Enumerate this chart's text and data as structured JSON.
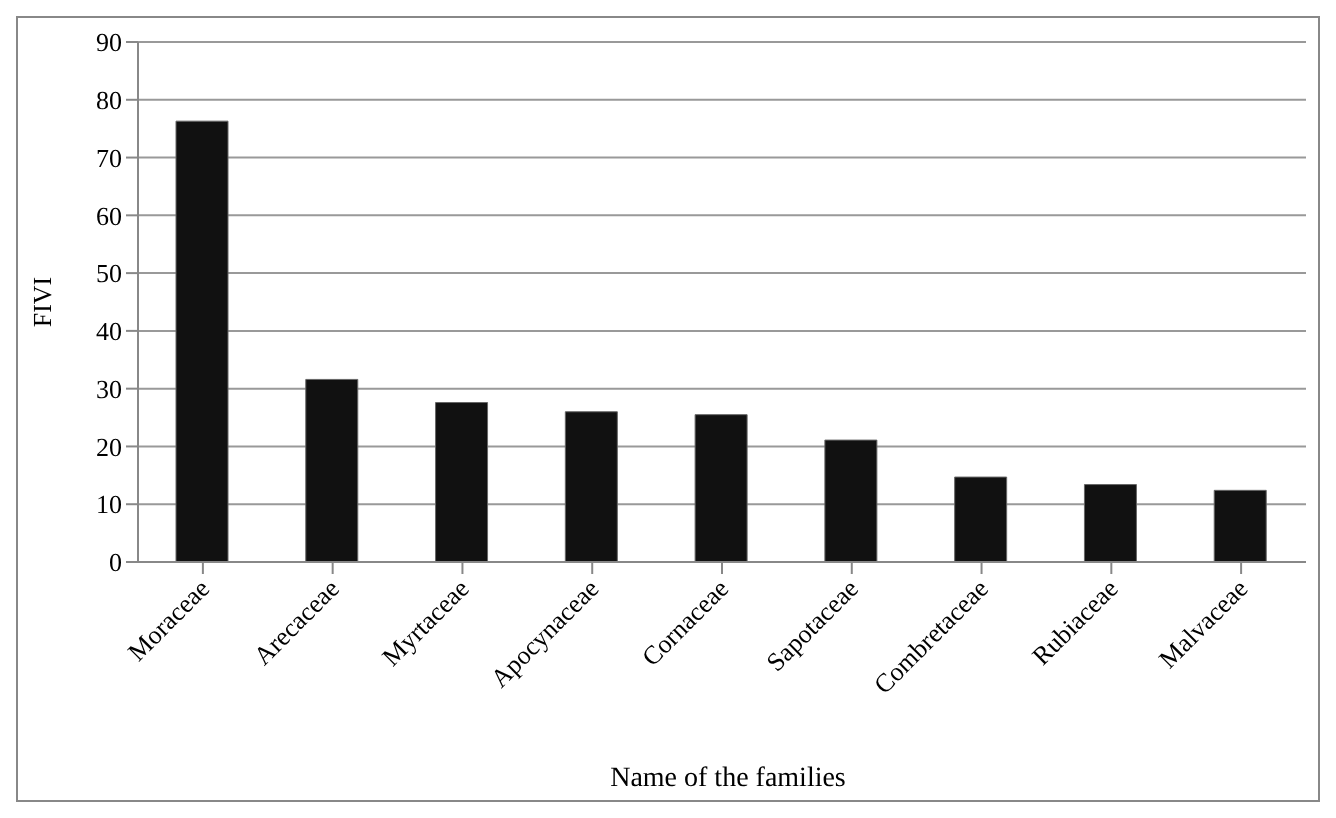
{
  "chart_data": {
    "type": "bar",
    "xlabel": "Name of the families",
    "ylabel": "FIVI",
    "categories": [
      "Moraceae",
      "Arecaceae",
      "Myrtaceae",
      "Apocynaceae",
      "Cornaceae",
      "Sapotaceae",
      "Combretaceae",
      "Rubiaceae",
      "Malvaceae"
    ],
    "values": [
      76.3,
      31.6,
      27.6,
      26.0,
      25.5,
      21.1,
      14.7,
      13.4,
      12.4
    ],
    "color": "#111111",
    "ylim": [
      0,
      90
    ],
    "yticks": [
      0,
      10,
      20,
      30,
      40,
      50,
      60,
      70,
      80,
      90
    ],
    "grid": "y"
  }
}
